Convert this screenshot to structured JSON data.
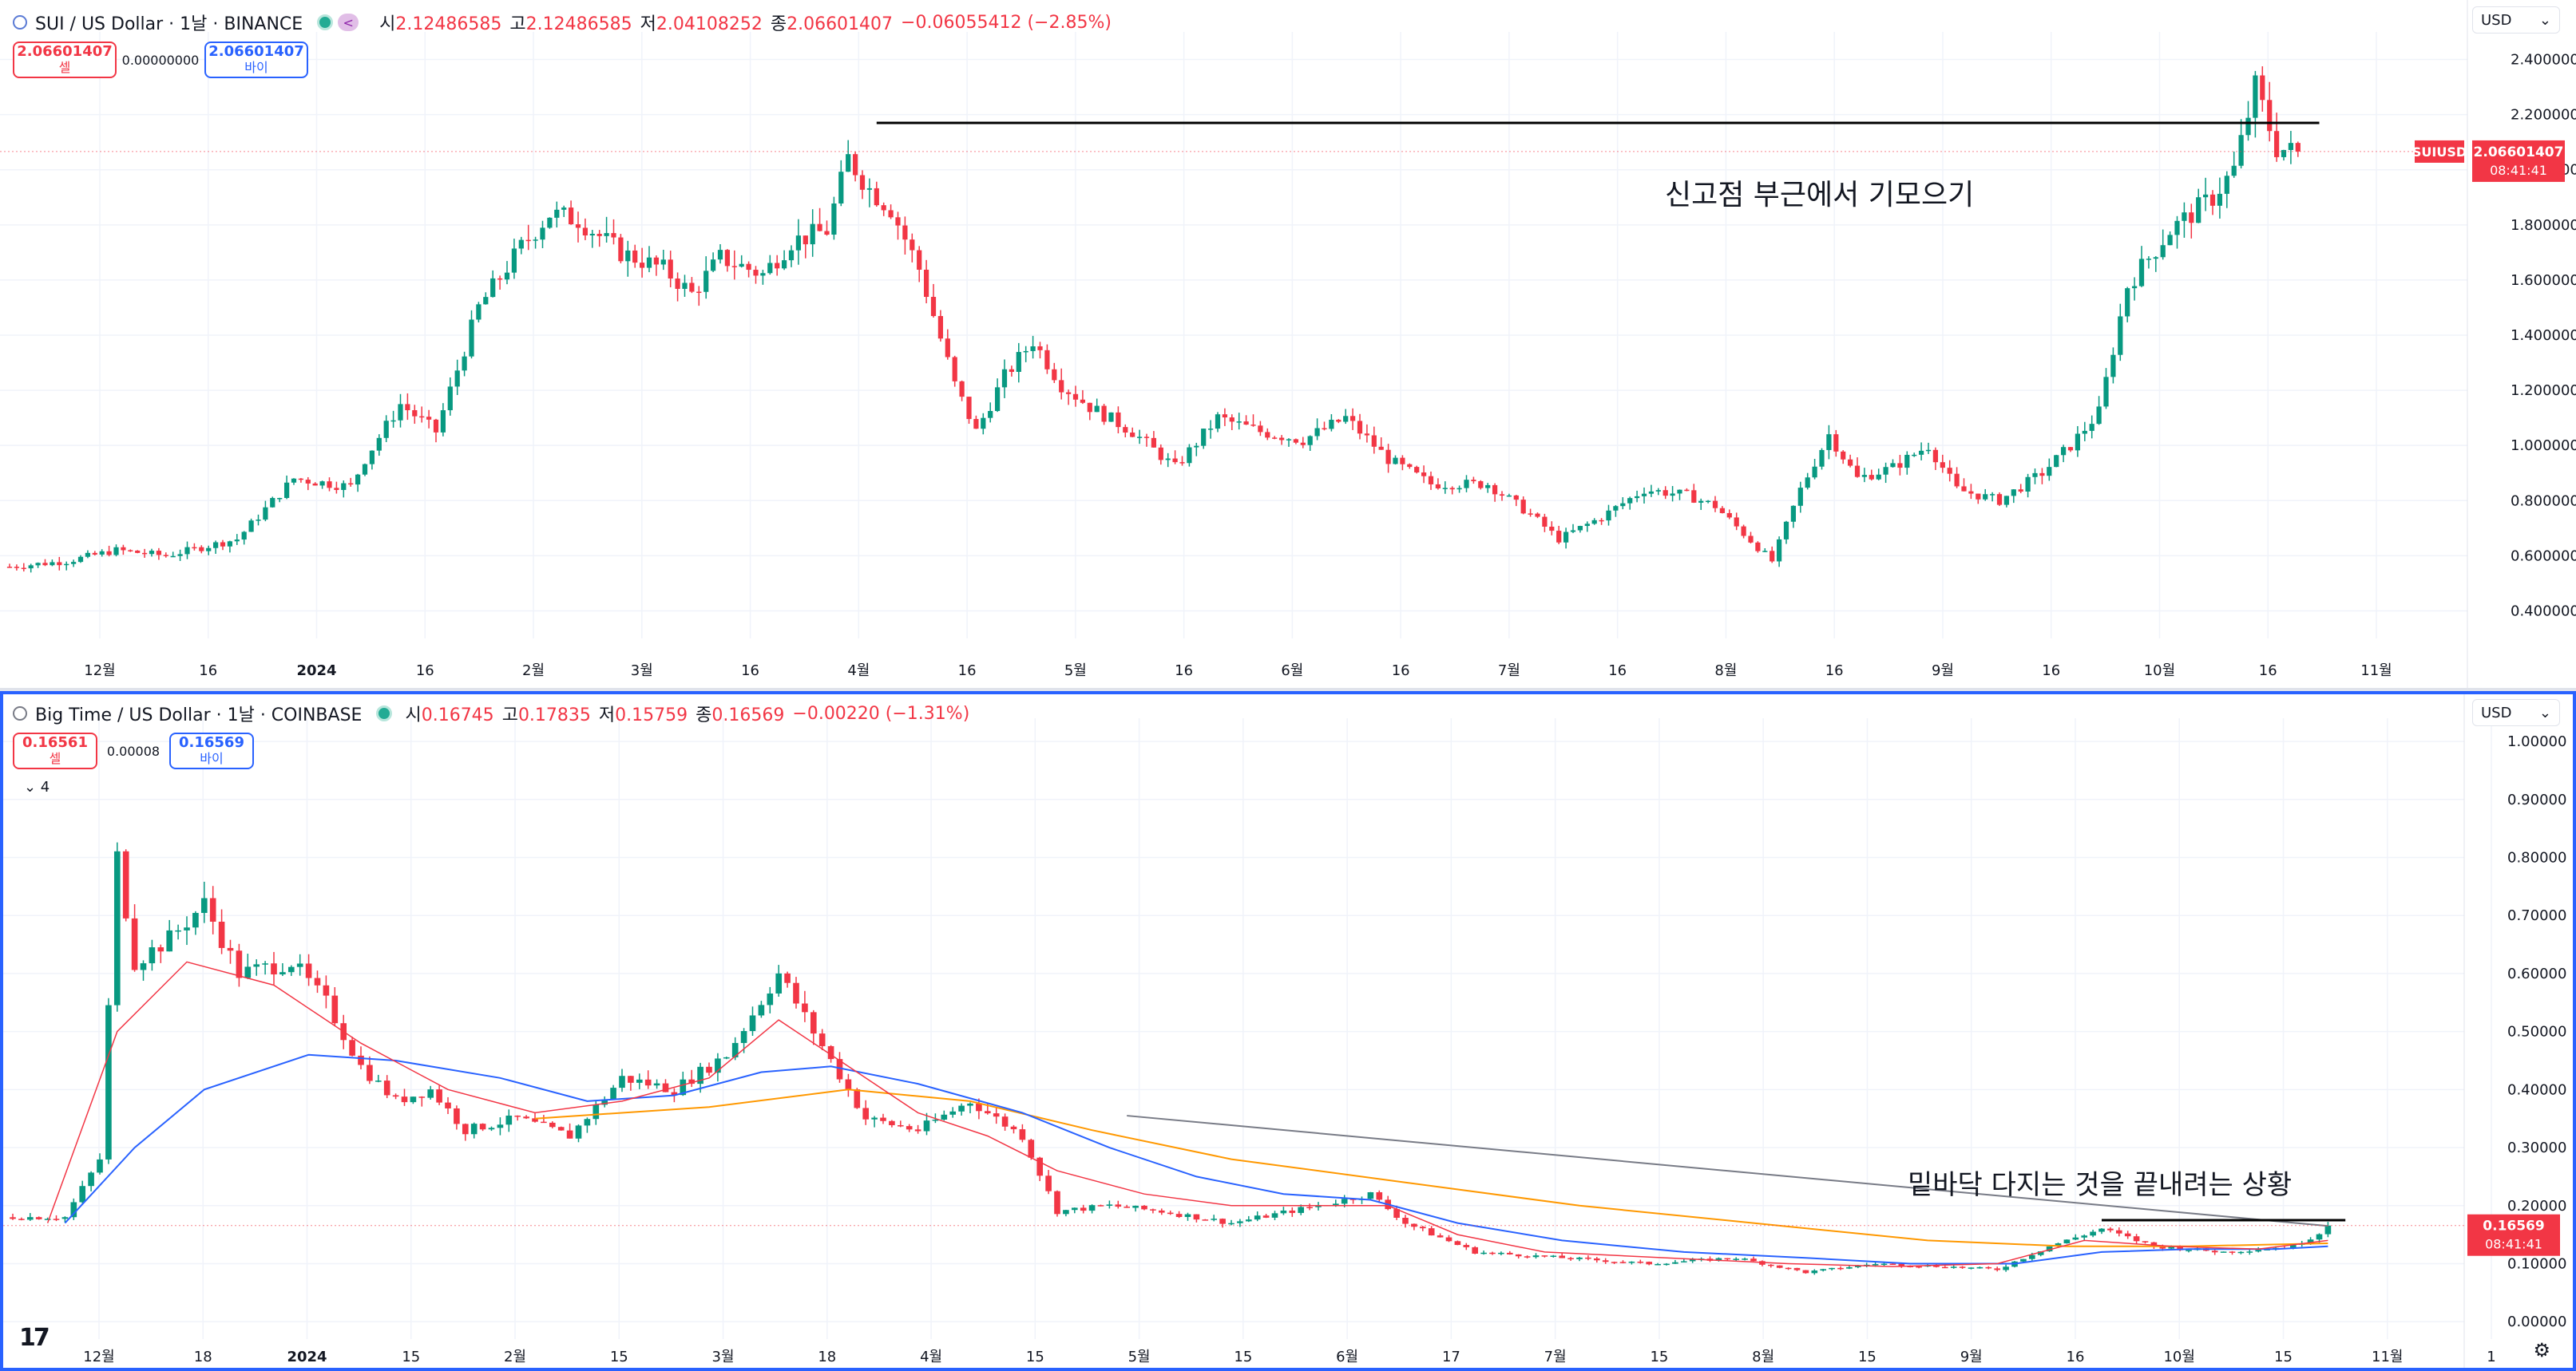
{
  "colors": {
    "up": "#089981",
    "down": "#f23645",
    "grid": "#f0f3fa",
    "accent": "#2962ff",
    "ema_fast": "#f23645",
    "ema_mid": "#2962ff",
    "ema_slow": "#ff9800",
    "resistance": "#000000"
  },
  "top": {
    "title": "SUI / US Dollar · 1날 · BINANCE",
    "ohlc": [
      {
        "k": "시",
        "v": "2.12486585"
      },
      {
        "k": "고",
        "v": "2.12486585"
      },
      {
        "k": "저",
        "v": "2.04108252"
      },
      {
        "k": "종",
        "v": "2.06601407"
      }
    ],
    "change": "−0.06055412 (−2.85%)",
    "sell_price": "2.06601407",
    "sell_label": "셀",
    "spread": "0.00000000",
    "buy_price": "2.06601407",
    "buy_label": "바이",
    "currency": "USD",
    "price_tag": {
      "symbol": "SUIUSD",
      "price": "2.06601407",
      "countdown": "08:41:41"
    },
    "annotation": "신고점 부근에서 기모으기"
  },
  "bottom": {
    "title": "Big Time / US Dollar · 1날 · COINBASE",
    "ohlc": [
      {
        "k": "시",
        "v": "0.16745"
      },
      {
        "k": "고",
        "v": "0.17835"
      },
      {
        "k": "저",
        "v": "0.15759"
      },
      {
        "k": "종",
        "v": "0.16569"
      }
    ],
    "change": "−0.00220 (−1.31%)",
    "sell_price": "0.16561",
    "sell_label": "셀",
    "spread": "0.00008",
    "buy_price": "0.16569",
    "buy_label": "바이",
    "indicator_toggle": "⌄ 4",
    "currency": "USD",
    "price_tag": {
      "price": "0.16569",
      "countdown": "08:41:41"
    },
    "annotation": "밑바닥 다지는 것을 끝내려는 상황",
    "logo": "17"
  },
  "chart_data": [
    {
      "type": "candlestick",
      "symbol": "SUIUSD",
      "ylim": [
        0.3,
        2.5
      ],
      "y_ticks": [
        "0.40000000",
        "0.60000000",
        "0.80000000",
        "1.00000000",
        "1.20000000",
        "1.40000000",
        "1.60000000",
        "1.80000000",
        "2.00000000",
        "2.20000000",
        "2.40000000"
      ],
      "x_ticks": [
        "12월",
        "16",
        "2024",
        "16",
        "2월",
        "3월",
        "16",
        "4월",
        "16",
        "5월",
        "16",
        "6월",
        "16",
        "7월",
        "16",
        "8월",
        "16",
        "9월",
        "16",
        "10월",
        "16",
        "11월"
      ],
      "close_path": [
        [
          0,
          0.56
        ],
        [
          8,
          0.58
        ],
        [
          15,
          0.62
        ],
        [
          22,
          0.6
        ],
        [
          32,
          0.66
        ],
        [
          40,
          0.88
        ],
        [
          48,
          0.85
        ],
        [
          50,
          0.95
        ],
        [
          55,
          1.15
        ],
        [
          60,
          1.05
        ],
        [
          66,
          1.5
        ],
        [
          72,
          1.72
        ],
        [
          76,
          1.84
        ],
        [
          80,
          1.82
        ],
        [
          86,
          1.7
        ],
        [
          92,
          1.64
        ],
        [
          96,
          1.55
        ],
        [
          100,
          1.68
        ],
        [
          106,
          1.62
        ],
        [
          110,
          1.74
        ],
        [
          115,
          1.78
        ],
        [
          118,
          2.04
        ],
        [
          121,
          1.93
        ],
        [
          124,
          1.86
        ],
        [
          128,
          1.64
        ],
        [
          133,
          1.22
        ],
        [
          136,
          1.05
        ],
        [
          140,
          1.25
        ],
        [
          144,
          1.38
        ],
        [
          148,
          1.22
        ],
        [
          152,
          1.14
        ],
        [
          158,
          1.05
        ],
        [
          164,
          0.92
        ],
        [
          170,
          1.1
        ],
        [
          176,
          1.05
        ],
        [
          182,
          1.02
        ],
        [
          188,
          1.1
        ],
        [
          194,
          0.95
        ],
        [
          200,
          0.86
        ],
        [
          208,
          0.86
        ],
        [
          214,
          0.75
        ],
        [
          218,
          0.66
        ],
        [
          224,
          0.74
        ],
        [
          230,
          0.84
        ],
        [
          236,
          0.82
        ],
        [
          240,
          0.78
        ],
        [
          248,
          0.58
        ],
        [
          252,
          0.84
        ],
        [
          256,
          1.04
        ],
        [
          260,
          0.88
        ],
        [
          265,
          0.92
        ],
        [
          270,
          1.0
        ],
        [
          274,
          0.84
        ],
        [
          280,
          0.8
        ],
        [
          286,
          0.9
        ],
        [
          290,
          1.0
        ],
        [
          294,
          1.12
        ],
        [
          298,
          1.58
        ],
        [
          304,
          1.78
        ],
        [
          310,
          1.9
        ],
        [
          313,
          2.0
        ],
        [
          316,
          2.3
        ],
        [
          319,
          2.08
        ],
        [
          322,
          2.06
        ]
      ],
      "resistance": {
        "x": [
          122,
          325
        ],
        "y": 2.17
      },
      "last_close": 2.06601407
    },
    {
      "type": "candlestick",
      "symbol": "BIGTIME",
      "ylim": [
        -0.03,
        1.04
      ],
      "y_ticks": [
        "0.00000",
        "0.10000",
        "0.20000",
        "0.30000",
        "0.40000",
        "0.50000",
        "0.60000",
        "0.70000",
        "0.80000",
        "0.90000",
        "1.00000"
      ],
      "x_ticks": [
        "12월",
        "18",
        "2024",
        "15",
        "2월",
        "15",
        "3월",
        "18",
        "4월",
        "15",
        "5월",
        "15",
        "6월",
        "17",
        "7월",
        "15",
        "8월",
        "15",
        "9월",
        "16",
        "10월",
        "15",
        "11월",
        "1"
      ],
      "close_path": [
        [
          0,
          0.18
        ],
        [
          6,
          0.18
        ],
        [
          10,
          0.28
        ],
        [
          12,
          0.8
        ],
        [
          14,
          0.62
        ],
        [
          18,
          0.66
        ],
        [
          22,
          0.72
        ],
        [
          26,
          0.6
        ],
        [
          32,
          0.62
        ],
        [
          36,
          0.55
        ],
        [
          40,
          0.44
        ],
        [
          44,
          0.38
        ],
        [
          48,
          0.4
        ],
        [
          52,
          0.33
        ],
        [
          58,
          0.35
        ],
        [
          64,
          0.32
        ],
        [
          70,
          0.42
        ],
        [
          76,
          0.4
        ],
        [
          82,
          0.46
        ],
        [
          88,
          0.6
        ],
        [
          94,
          0.45
        ],
        [
          98,
          0.35
        ],
        [
          104,
          0.33
        ],
        [
          110,
          0.38
        ],
        [
          116,
          0.32
        ],
        [
          120,
          0.19
        ],
        [
          126,
          0.2
        ],
        [
          132,
          0.19
        ],
        [
          140,
          0.17
        ],
        [
          150,
          0.2
        ],
        [
          156,
          0.22
        ],
        [
          160,
          0.17
        ],
        [
          168,
          0.12
        ],
        [
          178,
          0.11
        ],
        [
          188,
          0.1
        ],
        [
          198,
          0.11
        ],
        [
          206,
          0.085
        ],
        [
          214,
          0.1
        ],
        [
          222,
          0.095
        ],
        [
          228,
          0.09
        ],
        [
          234,
          0.13
        ],
        [
          240,
          0.16
        ],
        [
          246,
          0.13
        ],
        [
          254,
          0.12
        ],
        [
          262,
          0.13
        ],
        [
          266,
          0.16
        ]
      ],
      "ema_fast": [
        [
          4,
          0.17
        ],
        [
          12,
          0.5
        ],
        [
          20,
          0.62
        ],
        [
          30,
          0.58
        ],
        [
          40,
          0.48
        ],
        [
          50,
          0.4
        ],
        [
          60,
          0.36
        ],
        [
          70,
          0.38
        ],
        [
          80,
          0.42
        ],
        [
          88,
          0.52
        ],
        [
          96,
          0.44
        ],
        [
          104,
          0.36
        ],
        [
          112,
          0.32
        ],
        [
          120,
          0.26
        ],
        [
          130,
          0.22
        ],
        [
          140,
          0.2
        ],
        [
          150,
          0.2
        ],
        [
          158,
          0.2
        ],
        [
          166,
          0.15
        ],
        [
          176,
          0.12
        ],
        [
          190,
          0.11
        ],
        [
          204,
          0.1
        ],
        [
          216,
          0.095
        ],
        [
          228,
          0.1
        ],
        [
          238,
          0.14
        ],
        [
          248,
          0.13
        ],
        [
          258,
          0.125
        ],
        [
          266,
          0.14
        ]
      ],
      "ema_mid": [
        [
          6,
          0.17
        ],
        [
          14,
          0.3
        ],
        [
          22,
          0.4
        ],
        [
          34,
          0.46
        ],
        [
          44,
          0.45
        ],
        [
          56,
          0.42
        ],
        [
          66,
          0.38
        ],
        [
          76,
          0.39
        ],
        [
          86,
          0.43
        ],
        [
          94,
          0.44
        ],
        [
          104,
          0.41
        ],
        [
          116,
          0.36
        ],
        [
          126,
          0.3
        ],
        [
          136,
          0.25
        ],
        [
          146,
          0.22
        ],
        [
          156,
          0.21
        ],
        [
          166,
          0.17
        ],
        [
          178,
          0.14
        ],
        [
          192,
          0.12
        ],
        [
          206,
          0.11
        ],
        [
          218,
          0.1
        ],
        [
          230,
          0.1
        ],
        [
          240,
          0.12
        ],
        [
          250,
          0.125
        ],
        [
          260,
          0.125
        ],
        [
          266,
          0.13
        ]
      ],
      "ema_slow": [
        [
          60,
          0.35
        ],
        [
          80,
          0.37
        ],
        [
          96,
          0.4
        ],
        [
          110,
          0.38
        ],
        [
          124,
          0.33
        ],
        [
          140,
          0.28
        ],
        [
          160,
          0.24
        ],
        [
          180,
          0.2
        ],
        [
          200,
          0.17
        ],
        [
          220,
          0.14
        ],
        [
          236,
          0.13
        ],
        [
          250,
          0.13
        ],
        [
          266,
          0.135
        ]
      ],
      "trendline": {
        "from": [
          128,
          0.355
        ],
        "to": [
          266,
          0.165
        ]
      },
      "bottom_resistance": {
        "x": [
          240,
          268
        ],
        "y": 0.175
      },
      "last_close": 0.16569
    }
  ]
}
